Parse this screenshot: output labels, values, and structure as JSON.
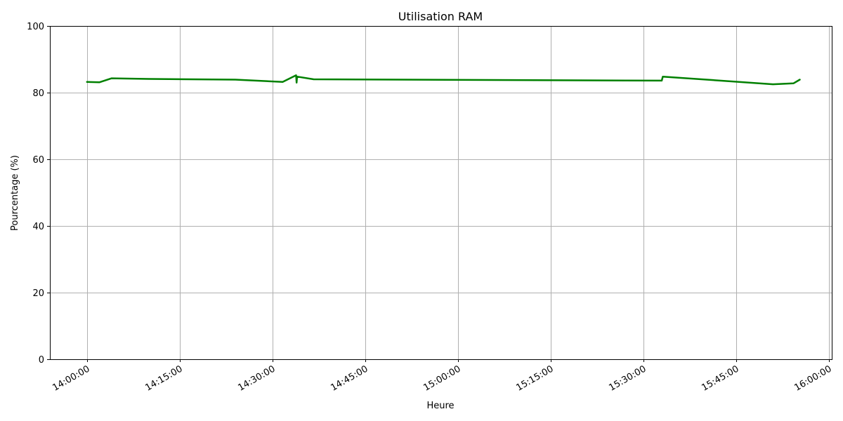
{
  "chart_data": {
    "type": "line",
    "title": "Utilisation RAM",
    "xlabel": "Heure",
    "ylabel": "Pourcentage (%)",
    "ylim": [
      0,
      100
    ],
    "yticks": [
      0,
      20,
      40,
      60,
      80,
      100
    ],
    "xlim": [
      "13:54:00",
      "16:00:30"
    ],
    "xticks": [
      "14:00:00",
      "14:15:00",
      "14:30:00",
      "14:45:00",
      "15:00:00",
      "15:15:00",
      "15:30:00",
      "15:45:00",
      "16:00:00"
    ],
    "grid": true,
    "series": [
      {
        "color": "#008000",
        "x": [
          "14:00:00",
          "14:02:00",
          "14:04:00",
          "14:10:00",
          "14:24:00",
          "14:31:40",
          "14:33:50",
          "14:33:55",
          "14:34:00",
          "14:36:40",
          "15:33:00",
          "15:33:10",
          "15:51:00",
          "15:54:20",
          "15:55:20"
        ],
        "y": [
          83.2,
          83.1,
          84.3,
          84.1,
          83.9,
          83.2,
          85.2,
          83.0,
          84.8,
          84.0,
          83.6,
          84.8,
          82.5,
          82.8,
          83.9
        ]
      }
    ]
  }
}
